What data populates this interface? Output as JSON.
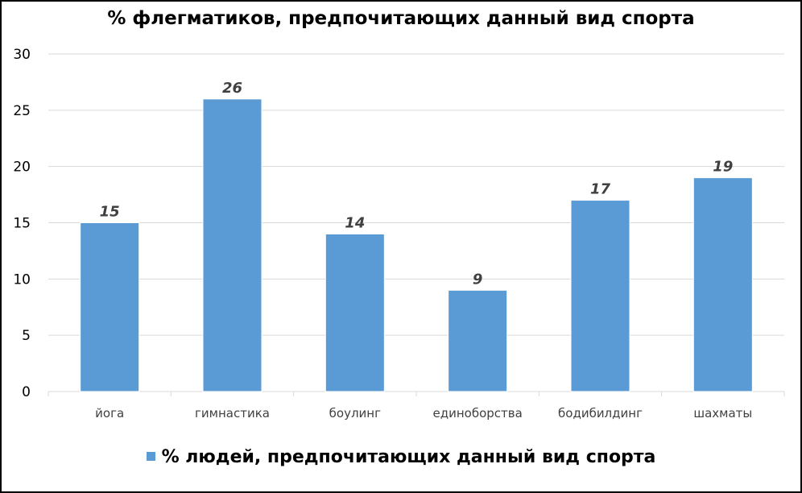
{
  "chart_data": {
    "type": "bar",
    "title": "% флегматиков, предпочитающих данный вид спорта",
    "categories": [
      "йога",
      "гимнастика",
      "боулинг",
      "единоборства",
      "бодибилдинг",
      "шахматы"
    ],
    "series": [
      {
        "name": "% людей, предпочитающих данный вид спорта",
        "values": [
          15,
          26,
          14,
          9,
          17,
          19
        ]
      }
    ],
    "ylim": [
      0,
      30
    ],
    "yticks": [
      "0",
      "5",
      "10",
      "15",
      "20",
      "25",
      "30"
    ],
    "grid": true,
    "legend": "bottom",
    "bar_color": "#5b9bd5",
    "data_labels": true
  }
}
